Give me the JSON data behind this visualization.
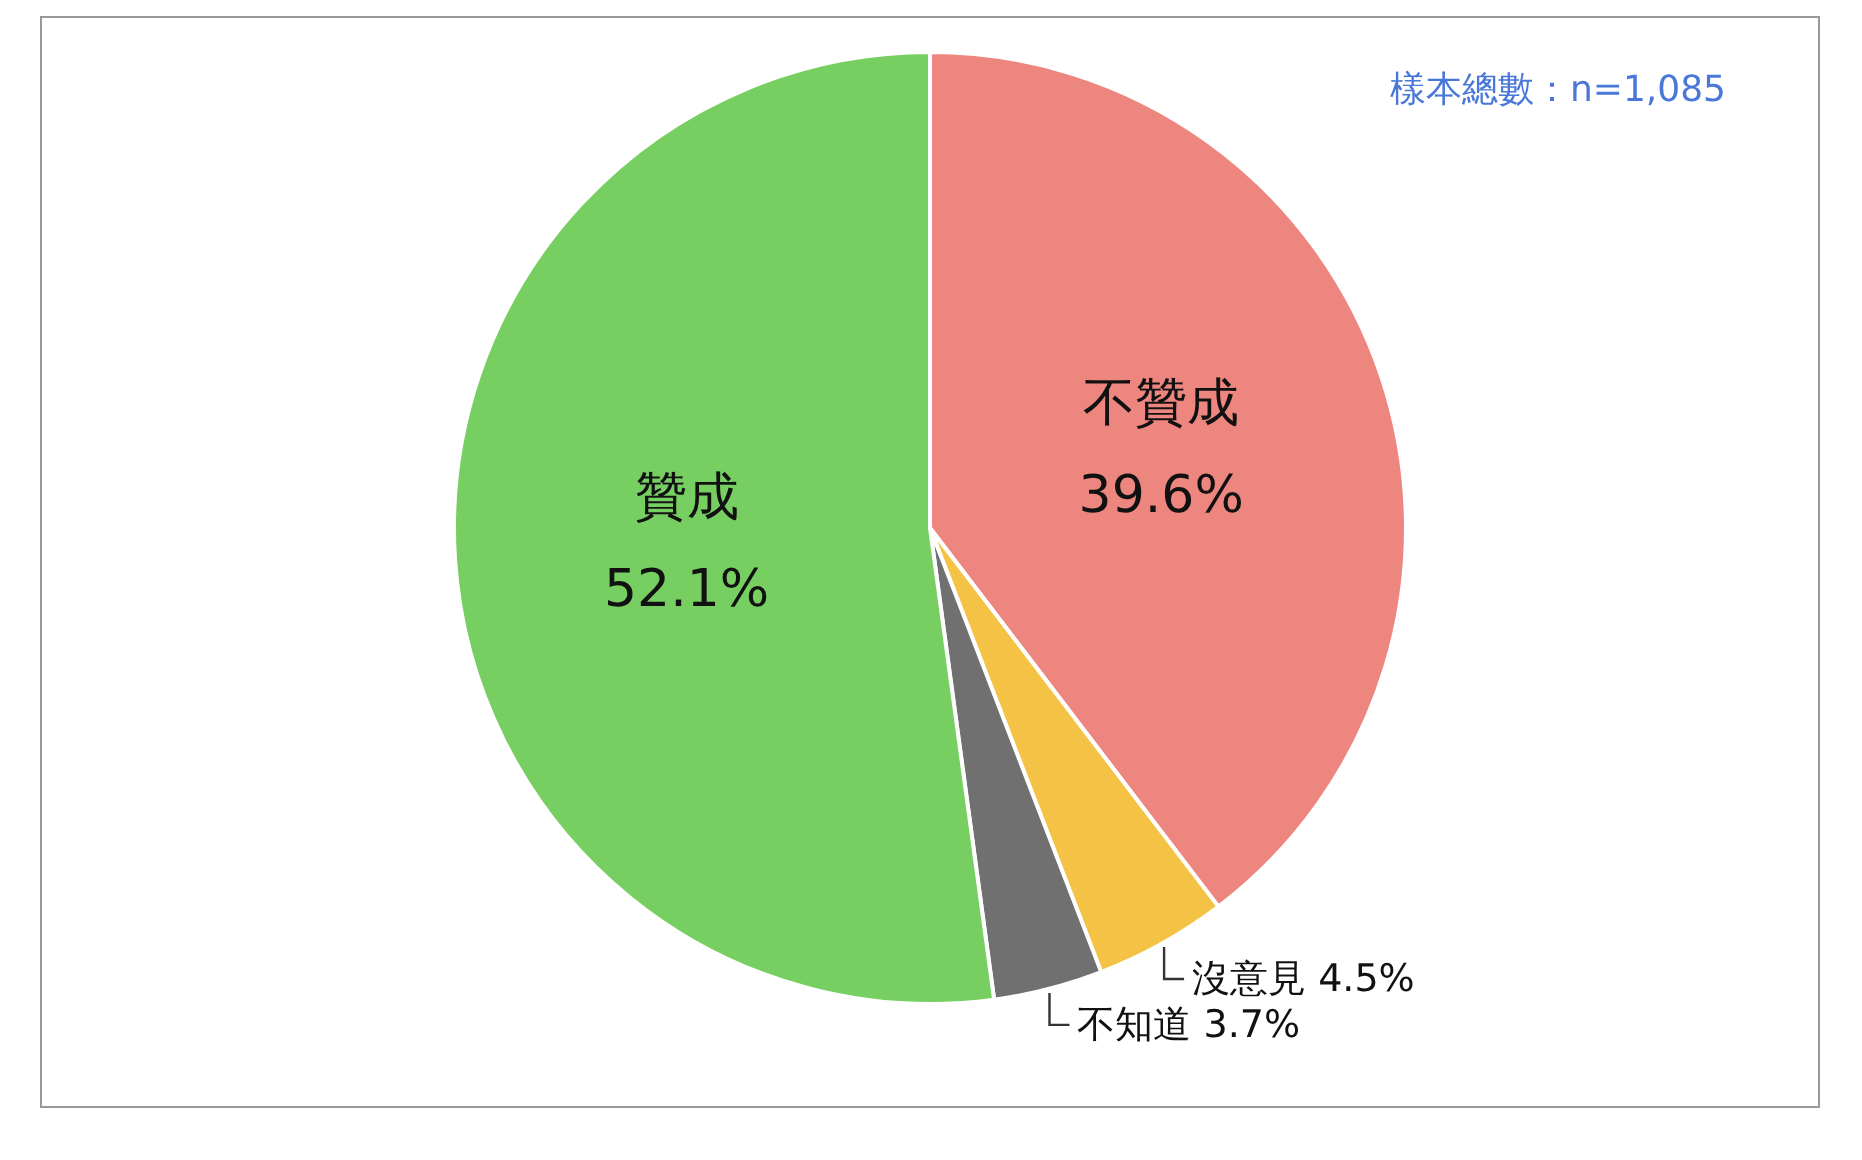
{
  "chart_data": {
    "type": "pie",
    "categories": [
      "不贊成",
      "沒意見",
      "不知道",
      "贊成"
    ],
    "values": [
      39.6,
      4.5,
      3.7,
      52.1
    ],
    "value_labels": [
      "39.6%",
      "4.5%",
      "3.7%",
      "52.1%"
    ],
    "colors": [
      "#ee8680",
      "#f4c244",
      "#707070",
      "#77cf62"
    ],
    "annotations": [
      "樣本總數：n=1,085"
    ]
  }
}
